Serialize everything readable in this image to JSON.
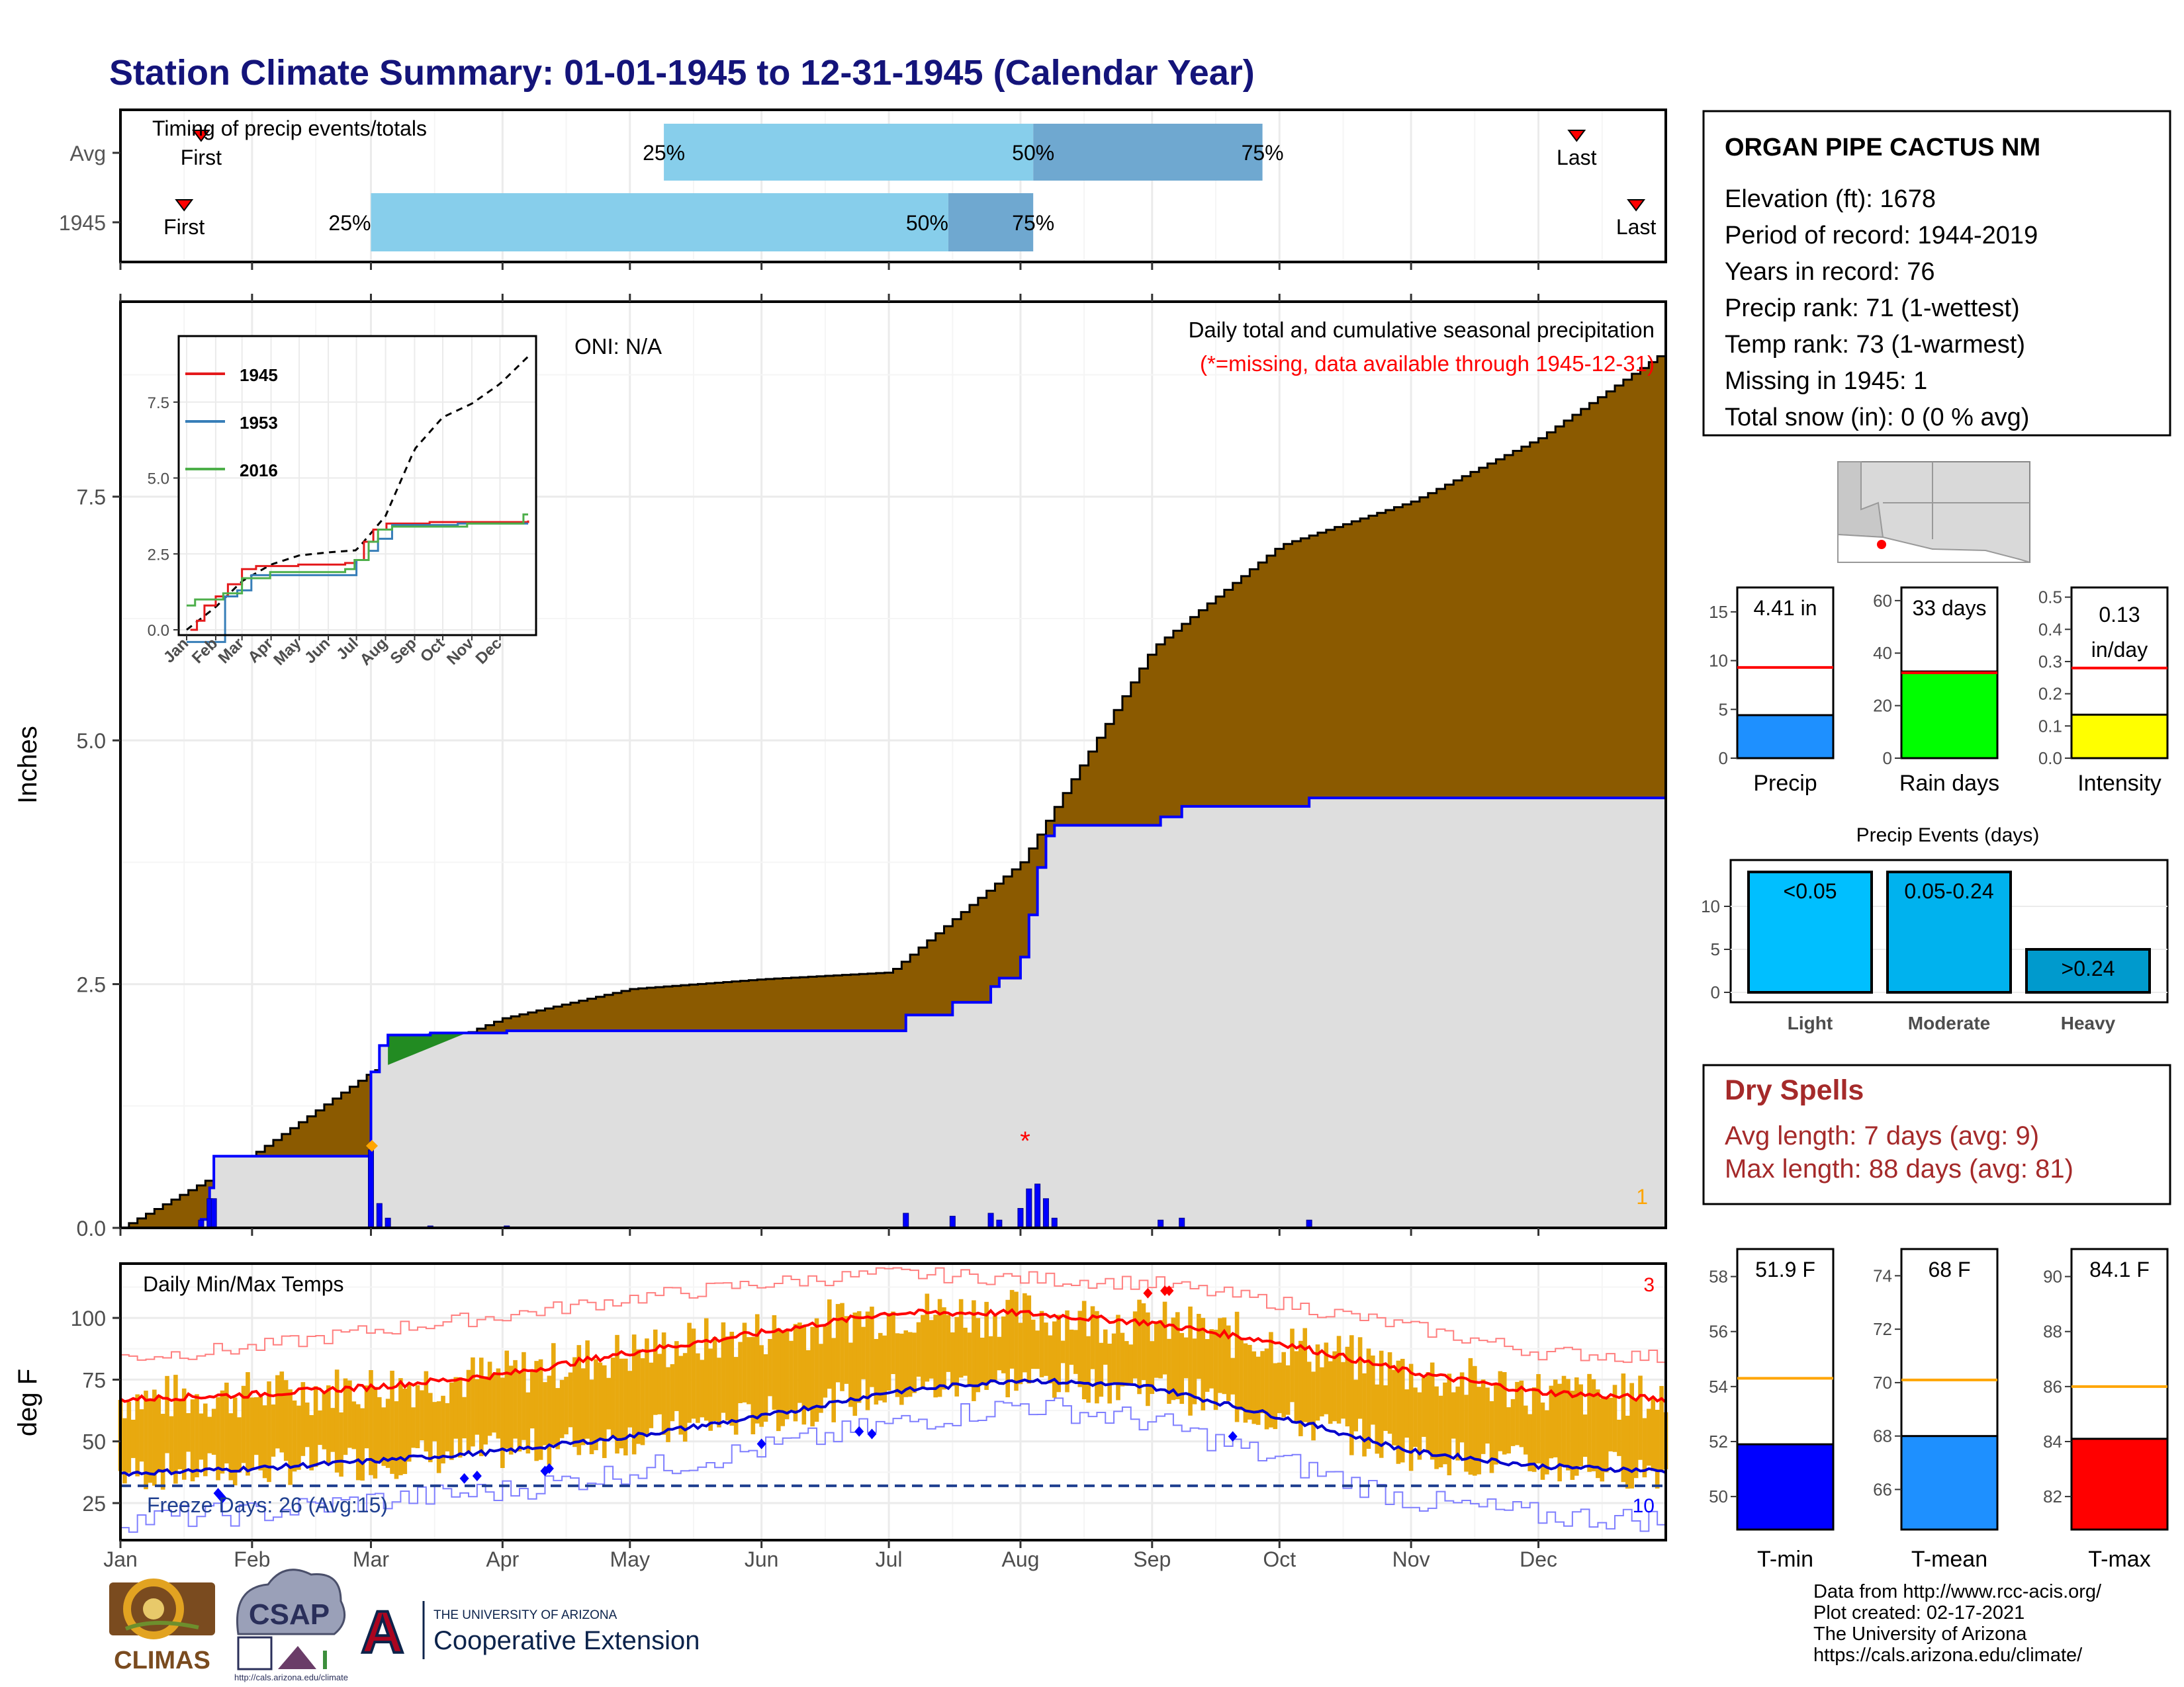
{
  "title": "Station Climate Summary: 01-01-1945 to 12-31-1945 (Calendar Year)",
  "colors": {
    "title": "#14147a",
    "precip_fill": "#8b5a00",
    "normal_fill": "#dedede",
    "wetter_fill": "#228b22",
    "series_blue": "#0000ff",
    "temp_bar": "#e8a90f",
    "max_line": "#ff0000",
    "min_line": "#0000cc",
    "light_blue": "#87ceeb",
    "mid_blue": "#6fa8d0",
    "missing": "#ff0000"
  },
  "timing": {
    "title": "Timing of precip events/totals",
    "rows": [
      "Avg",
      "1945"
    ],
    "first_label": "First",
    "last_label": "Last",
    "pct_labels": [
      "25%",
      "50%",
      "75%"
    ],
    "avg": {
      "first": "Jan 20",
      "p25": "May 09",
      "p50": "Aug 04",
      "p75": "Sep 27",
      "last": "Dec 10"
    },
    "y1945": {
      "first": "Jan 16",
      "p25": "Mar 01",
      "p50": "Jul 15",
      "p75": "Aug 04",
      "last": "Dec 24"
    }
  },
  "precip_panel": {
    "ylabel": "Inches",
    "y_ticks": [
      "0.0",
      "2.5",
      "5.0",
      "7.5"
    ],
    "oni": "ONI: N/A",
    "title": "Daily total and cumulative seasonal precipitation",
    "missing_note": "(*=missing, data available through 1945-12-31)",
    "missing_marker": "*",
    "count_label": "1",
    "inset": {
      "series": [
        "1945",
        "1953",
        "2016"
      ],
      "y_ticks": [
        "0.0",
        "2.5",
        "5.0",
        "7.5"
      ],
      "x_ticks": [
        "Jan",
        "Feb",
        "Mar",
        "Apr",
        "May",
        "Jun",
        "Jul",
        "Aug",
        "Sep",
        "Oct",
        "Nov",
        "Dec"
      ]
    }
  },
  "temp_panel": {
    "title": "Daily Min/Max Temps",
    "ylabel": "deg F",
    "y_ticks": [
      "25",
      "50",
      "75",
      "100"
    ],
    "freeze_text": "Freeze Days: 26 (Avg:15)",
    "count_right_top": "3",
    "count_right_bottom": "10"
  },
  "x_months": [
    "Jan",
    "Feb",
    "Mar",
    "Apr",
    "May",
    "Jun",
    "Jul",
    "Aug",
    "Sep",
    "Oct",
    "Nov",
    "Dec"
  ],
  "station": {
    "name": "ORGAN PIPE CACTUS NM",
    "lines": [
      "Elevation (ft): 1678",
      "Period of record: 1944-2019",
      "Years in record: 76",
      "Precip rank: 71 (1-wettest)",
      "Temp rank: 73 (1-warmest)",
      "Missing in 1945: 1",
      "Total snow (in): 0 (0 % avg)"
    ]
  },
  "precip_summary": [
    {
      "label": "Precip",
      "value_text": "4.41 in",
      "ticks": [
        "0",
        "5",
        "10",
        "15"
      ]
    },
    {
      "label": "Rain days",
      "value_text": "33 days",
      "ticks": [
        "0",
        "20",
        "40",
        "60"
      ]
    },
    {
      "label": "Intensity",
      "value_text": "0.13 in/day",
      "value_line1": "0.13",
      "value_line2": "in/day",
      "ticks": [
        "0.0",
        "0.1",
        "0.2",
        "0.3",
        "0.4",
        "0.5"
      ]
    }
  ],
  "events": {
    "title": "Precip Events (days)",
    "ticks": [
      "0",
      "5",
      "10"
    ],
    "categories": [
      "Light",
      "Moderate",
      "Heavy"
    ],
    "bar_labels": [
      "<0.05",
      "0.05-0.24",
      ">0.24"
    ]
  },
  "dry_spells": {
    "title": "Dry Spells",
    "avg_line": "Avg length: 7 days (avg: 9)",
    "max_line": "Max length: 88 days (avg: 81)"
  },
  "temp_summary": [
    {
      "label": "T-min",
      "value_text": "51.9 F",
      "ticks": [
        "50",
        "52",
        "54",
        "56",
        "58"
      ]
    },
    {
      "label": "T-mean",
      "value_text": "68 F",
      "ticks": [
        "66",
        "68",
        "70",
        "72",
        "74"
      ]
    },
    {
      "label": "T-max",
      "value_text": "84.1 F",
      "ticks": [
        "82",
        "84",
        "86",
        "88",
        "90"
      ]
    }
  ],
  "credits": [
    "Data from http://www.rcc-acis.org/",
    "Plot created: 02-17-2021",
    "The University of Arizona",
    "https://cals.arizona.edu/climate/"
  ],
  "logos": {
    "climas": "CLIMAS",
    "csap": "CSAP",
    "csap_url": "http://cals.arizona.edu/climate",
    "ua_letter": "A",
    "ua_small": "THE UNIVERSITY OF ARIZONA",
    "ua_big": "Cooperative Extension"
  },
  "chart_data": [
    {
      "type": "area",
      "title": "Daily total and cumulative seasonal precipitation",
      "ylabel": "Inches",
      "ylim": [
        0,
        9.5
      ],
      "x": [
        "Jan 01",
        "Feb 01",
        "Mar 01",
        "Apr 01",
        "May 01",
        "Jun 01",
        "Jul 01",
        "Aug 01",
        "Sep 01",
        "Oct 01",
        "Nov 01",
        "Dec 01",
        "Dec 31"
      ],
      "series": [
        {
          "name": "Average cumulative",
          "values": [
            0.0,
            0.75,
            1.6,
            2.15,
            2.45,
            2.55,
            2.62,
            3.75,
            5.95,
            7.0,
            7.45,
            8.1,
            9.0
          ]
        },
        {
          "name": "1945 cumulative",
          "values": [
            0.0,
            0.3,
            1.7,
            2.12,
            2.12,
            2.12,
            2.12,
            3.65,
            4.25,
            4.38,
            4.38,
            4.38,
            4.41
          ]
        }
      ],
      "daily_bars": [
        {
          "date": "Jan 20",
          "value": 0.08
        },
        {
          "date": "Jan 22",
          "value": 0.3
        },
        {
          "date": "Jan 23",
          "value": 0.3
        },
        {
          "date": "Mar 01",
          "value": 0.8
        },
        {
          "date": "Mar 03",
          "value": 0.25
        },
        {
          "date": "Mar 05",
          "value": 0.1
        },
        {
          "date": "Mar 15",
          "value": 0.02
        },
        {
          "date": "Apr 02",
          "value": 0.02
        },
        {
          "date": "Jul 05",
          "value": 0.15
        },
        {
          "date": "Jul 16",
          "value": 0.12
        },
        {
          "date": "Jul 25",
          "value": 0.15
        },
        {
          "date": "Jul 27",
          "value": 0.08
        },
        {
          "date": "Aug 01",
          "value": 0.2
        },
        {
          "date": "Aug 03",
          "value": 0.4
        },
        {
          "date": "Aug 05",
          "value": 0.45
        },
        {
          "date": "Aug 07",
          "value": 0.3
        },
        {
          "date": "Aug 09",
          "value": 0.1
        },
        {
          "date": "Sep 03",
          "value": 0.08
        },
        {
          "date": "Sep 08",
          "value": 0.1
        },
        {
          "date": "Oct 08",
          "value": 0.08
        }
      ]
    },
    {
      "type": "line",
      "title": "Daily Min/Max Temps",
      "ylabel": "deg F",
      "ylim": [
        10,
        122
      ],
      "x": [
        "Jan 01",
        "Feb 01",
        "Mar 01",
        "Apr 01",
        "May 01",
        "Jun 01",
        "Jul 01",
        "Aug 01",
        "Sep 01",
        "Oct 01",
        "Nov 01",
        "Dec 01",
        "Dec 31"
      ],
      "series": [
        {
          "name": "Average max",
          "values": [
            67,
            69,
            72,
            77,
            86,
            94,
            102,
            102,
            98,
            90,
            78,
            70,
            67
          ]
        },
        {
          "name": "Average min",
          "values": [
            37,
            39,
            42,
            46,
            52,
            60,
            70,
            75,
            72,
            60,
            46,
            40,
            38
          ]
        },
        {
          "name": "Record max",
          "values": [
            84,
            88,
            95,
            101,
            108,
            114,
            118,
            116,
            114,
            106,
            96,
            86,
            84
          ]
        },
        {
          "name": "Record min",
          "values": [
            18,
            21,
            26,
            30,
            38,
            47,
            57,
            65,
            58,
            42,
            26,
            20,
            18
          ]
        }
      ],
      "freeze_threshold": 32
    },
    {
      "type": "bar",
      "title": "Precip Events (days)",
      "categories": [
        "Light",
        "Moderate",
        "Heavy"
      ],
      "values": [
        14,
        14,
        5
      ]
    }
  ]
}
